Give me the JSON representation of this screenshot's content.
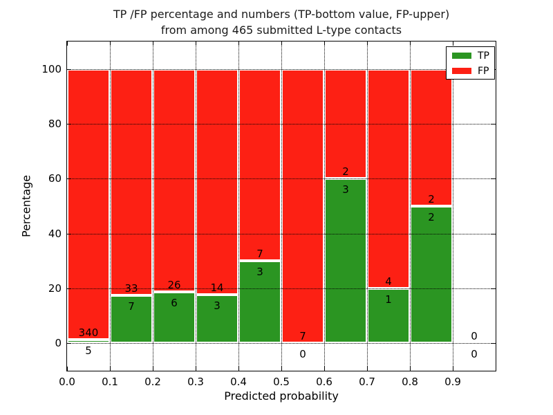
{
  "title": {
    "line1": "TP /FP percentage and numbers (TP-bottom value, FP-upper)",
    "line2": "from among 465 submitted L-type contacts"
  },
  "axes": {
    "xlabel": "Predicted probability",
    "ylabel": "Percentage"
  },
  "legend": {
    "items": [
      {
        "label": "TP",
        "color": "#2b9522"
      },
      {
        "label": "FP",
        "color": "#fd2014"
      }
    ]
  },
  "chart_data": {
    "type": "bar",
    "stacked": true,
    "title": "TP /FP percentage and numbers (TP-bottom value, FP-upper) from among 465 submitted L-type contacts",
    "xlabel": "Predicted probability",
    "ylabel": "Percentage",
    "xlim": [
      0.0,
      1.0
    ],
    "ylim": [
      -10,
      110
    ],
    "x_ticks": [
      0.0,
      0.1,
      0.2,
      0.3,
      0.4,
      0.5,
      0.6,
      0.7,
      0.8,
      0.9
    ],
    "x_tick_labels": [
      "0.0",
      "0.1",
      "0.2",
      "0.3",
      "0.4",
      "0.5",
      "0.6",
      "0.7",
      "0.8",
      "0.9"
    ],
    "y_ticks": [
      0,
      20,
      40,
      60,
      80,
      100
    ],
    "y_tick_labels": [
      "0",
      "20",
      "40",
      "60",
      "80",
      "100"
    ],
    "grid": "dotted",
    "legend_position": "upper right",
    "total_contacts": 465,
    "bin_width": 0.1,
    "bar_total_pct": 100,
    "bins": [
      {
        "x_start": 0.0,
        "x_end": 0.1,
        "tp_count": 5,
        "fp_count": 340,
        "tp_pct": 1.45,
        "fp_pct": 98.55
      },
      {
        "x_start": 0.1,
        "x_end": 0.2,
        "tp_count": 7,
        "fp_count": 33,
        "tp_pct": 17.5,
        "fp_pct": 82.5
      },
      {
        "x_start": 0.2,
        "x_end": 0.3,
        "tp_count": 6,
        "fp_count": 26,
        "tp_pct": 18.75,
        "fp_pct": 81.25
      },
      {
        "x_start": 0.3,
        "x_end": 0.4,
        "tp_count": 3,
        "fp_count": 14,
        "tp_pct": 17.65,
        "fp_pct": 82.35
      },
      {
        "x_start": 0.4,
        "x_end": 0.5,
        "tp_count": 3,
        "fp_count": 7,
        "tp_pct": 30,
        "fp_pct": 70
      },
      {
        "x_start": 0.5,
        "x_end": 0.6,
        "tp_count": 0,
        "fp_count": 7,
        "tp_pct": 0,
        "fp_pct": 100
      },
      {
        "x_start": 0.6,
        "x_end": 0.7,
        "tp_count": 3,
        "fp_count": 2,
        "tp_pct": 60,
        "fp_pct": 40
      },
      {
        "x_start": 0.7,
        "x_end": 0.8,
        "tp_count": 1,
        "fp_count": 4,
        "tp_pct": 20,
        "fp_pct": 80
      },
      {
        "x_start": 0.8,
        "x_end": 0.9,
        "tp_count": 2,
        "fp_count": 2,
        "tp_pct": 50,
        "fp_pct": 50
      },
      {
        "x_start": 0.9,
        "x_end": 1.0,
        "tp_count": 0,
        "fp_count": 0,
        "tp_pct": 0,
        "fp_pct": 0
      }
    ],
    "colors": {
      "tp": "#2b9522",
      "fp": "#fd2014",
      "bar_edge": "#ffffff",
      "grid": "#000000",
      "background": "#ffffff"
    }
  }
}
